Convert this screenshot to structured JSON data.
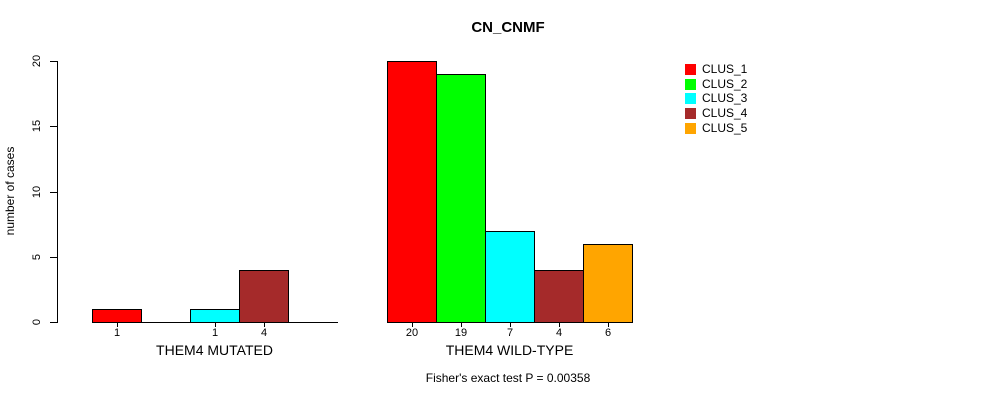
{
  "title": "CN_CNMF",
  "chart_data": {
    "type": "bar",
    "title": "CN_CNMF",
    "ylabel": "number of cases",
    "xlabel": "",
    "ylim": [
      0,
      20
    ],
    "yticks": [
      0,
      5,
      10,
      15,
      20
    ],
    "grid": false,
    "categories": [
      "THEM4 MUTATED",
      "THEM4 WILD-TYPE"
    ],
    "series": [
      {
        "name": "CLUS_1",
        "color": "#FF0000",
        "values": [
          1,
          20
        ]
      },
      {
        "name": "CLUS_2",
        "color": "#00FF00",
        "values": [
          0,
          19
        ]
      },
      {
        "name": "CLUS_3",
        "color": "#00FFFF",
        "values": [
          1,
          7
        ]
      },
      {
        "name": "CLUS_4",
        "color": "#A52A2A",
        "values": [
          4,
          4
        ]
      },
      {
        "name": "CLUS_5",
        "color": "#FFA500",
        "values": [
          0,
          6
        ]
      }
    ],
    "bar_value_labels": {
      "THEM4 MUTATED": [
        1,
        null,
        1,
        4,
        null
      ],
      "THEM4 WILD-TYPE": [
        20,
        19,
        7,
        4,
        6
      ]
    },
    "legend": {
      "position": "right",
      "entries": [
        "CLUS_1",
        "CLUS_2",
        "CLUS_3",
        "CLUS_4",
        "CLUS_5"
      ]
    },
    "annotation": "Fisher's exact test P = 0.00358"
  },
  "colors": {
    "background": "#ffffff",
    "axis": "#000000",
    "text": "#000000"
  }
}
